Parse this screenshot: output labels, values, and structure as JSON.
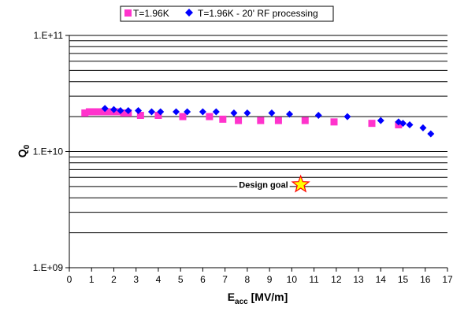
{
  "chart_data": {
    "type": "scatter",
    "title": "",
    "xlabel_main": "E",
    "xlabel_sub": "acc",
    "xlabel_rest": " [MV/m]",
    "ylabel_main": "Q",
    "ylabel_sub": "0",
    "xlim": [
      0,
      17
    ],
    "ylim": [
      1000000000.0,
      100000000000.0
    ],
    "y_scale": "log",
    "x_ticks": [
      "0",
      "1",
      "2",
      "3",
      "4",
      "5",
      "6",
      "7",
      "8",
      "9",
      "10",
      "11",
      "12",
      "13",
      "14",
      "15",
      "16",
      "17"
    ],
    "y_ticks": [
      "1.E+09",
      "1.E+10",
      "1.E+11"
    ],
    "grid": "horizontal minor and major",
    "legend_position": "top",
    "series": [
      {
        "name": "T=1.96K",
        "marker": "square",
        "color": "#ff33cc",
        "x": [
          0.7,
          0.9,
          1.05,
          1.2,
          1.35,
          1.6,
          1.85,
          2.15,
          2.45,
          2.65,
          3.2,
          4.0,
          5.1,
          6.3,
          6.9,
          7.6,
          8.6,
          9.4,
          10.6,
          11.9,
          13.6,
          14.8
        ],
        "y": [
          21500000000.0,
          22000000000.0,
          22000000000.0,
          22000000000.0,
          22000000000.0,
          22000000000.0,
          22000000000.0,
          22000000000.0,
          21500000000.0,
          21500000000.0,
          20500000000.0,
          20500000000.0,
          20000000000.0,
          20000000000.0,
          19000000000.0,
          18500000000.0,
          18500000000.0,
          18500000000.0,
          18500000000.0,
          18000000000.0,
          17500000000.0,
          17000000000.0
        ]
      },
      {
        "name": "T=1.96K - 20' RF processing",
        "marker": "diamond",
        "color": "#0000ff",
        "x": [
          1.6,
          2.0,
          2.3,
          2.65,
          3.1,
          3.7,
          4.1,
          4.8,
          5.3,
          6.0,
          6.6,
          7.4,
          8.0,
          9.1,
          9.9,
          11.2,
          12.5,
          14.0,
          14.8,
          15.0,
          15.3,
          15.9,
          16.25
        ],
        "y": [
          23500000000.0,
          23000000000.0,
          22500000000.0,
          22500000000.0,
          22500000000.0,
          22000000000.0,
          22000000000.0,
          22000000000.0,
          22000000000.0,
          22000000000.0,
          22000000000.0,
          21500000000.0,
          21500000000.0,
          21500000000.0,
          21000000000.0,
          20500000000.0,
          20000000000.0,
          18500000000.0,
          18000000000.0,
          17500000000.0,
          17000000000.0,
          16000000000.0,
          14200000000.0
        ]
      }
    ],
    "annotation": {
      "text": "Design goal",
      "x": 10.4,
      "y": 5200000000.0,
      "marker": "star",
      "marker_fill": "#ffff00",
      "marker_stroke": "#ff0000"
    }
  }
}
